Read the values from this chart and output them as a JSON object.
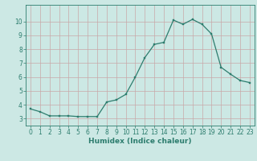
{
  "x": [
    0,
    1,
    2,
    3,
    4,
    5,
    6,
    7,
    8,
    9,
    10,
    11,
    12,
    13,
    14,
    15,
    16,
    17,
    18,
    19,
    20,
    21,
    22,
    23
  ],
  "y": [
    3.7,
    3.5,
    3.2,
    3.2,
    3.2,
    3.15,
    3.15,
    3.15,
    4.2,
    4.35,
    4.75,
    6.0,
    7.4,
    8.35,
    8.5,
    10.1,
    9.8,
    10.15,
    9.8,
    9.1,
    6.7,
    6.2,
    5.75,
    5.6
  ],
  "line_color": "#2d7d6e",
  "marker_color": "#2d7d6e",
  "bg_color": "#cce8e4",
  "grid_color": "#b8d8d4",
  "axis_color": "#2d7d6e",
  "tick_color": "#2d7d6e",
  "xlabel": "Humidex (Indice chaleur)",
  "xlim": [
    -0.5,
    23.5
  ],
  "ylim": [
    2.5,
    11.2
  ],
  "yticks": [
    3,
    4,
    5,
    6,
    7,
    8,
    9,
    10
  ],
  "xticks": [
    0,
    1,
    2,
    3,
    4,
    5,
    6,
    7,
    8,
    9,
    10,
    11,
    12,
    13,
    14,
    15,
    16,
    17,
    18,
    19,
    20,
    21,
    22,
    23
  ],
  "fontsize_label": 6.5,
  "fontsize_tick": 5.5
}
